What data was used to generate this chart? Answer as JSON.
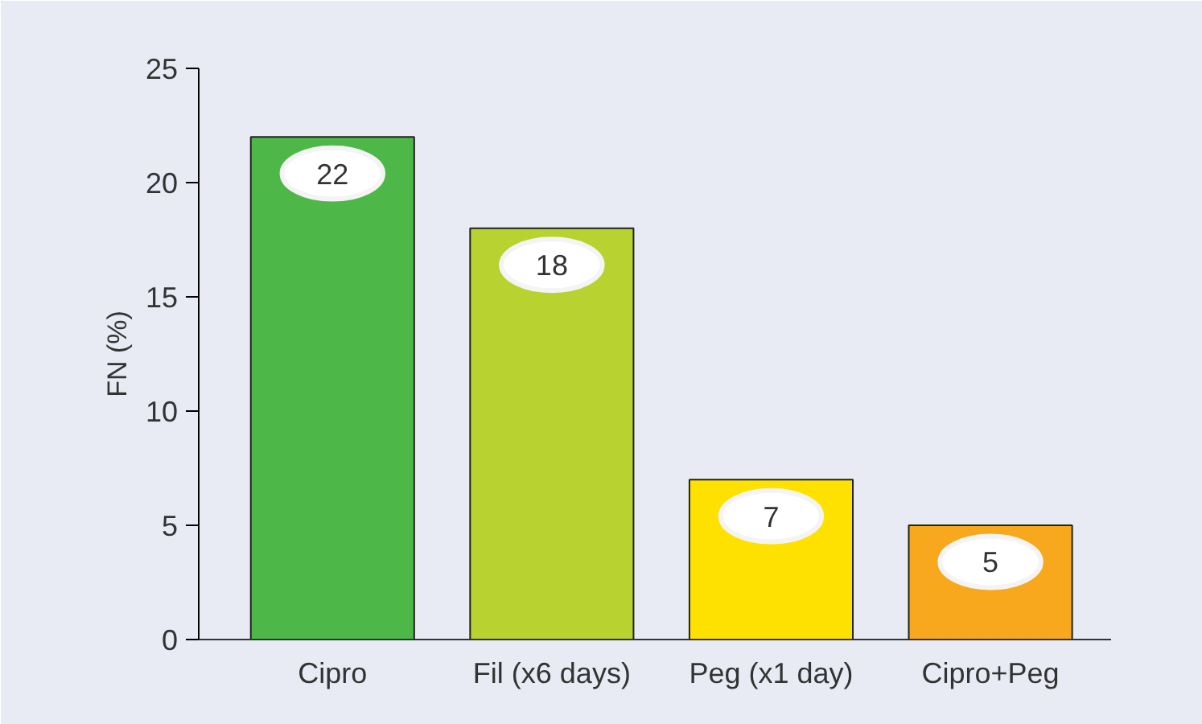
{
  "chart_data": {
    "type": "bar",
    "ylabel": "FN (%)",
    "categories": [
      "Cipro",
      "Fil (x6 days)",
      "Peg (x1 day)",
      "Cipro+Peg"
    ],
    "values": [
      22,
      18,
      7,
      5
    ],
    "colors": [
      "#4db848",
      "#b8d22f",
      "#ffe100",
      "#f7a81c"
    ],
    "ylim": [
      0,
      25
    ],
    "yticks": [
      0,
      5,
      10,
      15,
      20,
      25
    ],
    "data_labels": true,
    "grid": false
  }
}
